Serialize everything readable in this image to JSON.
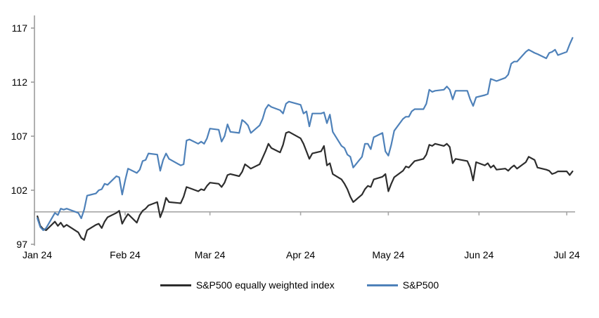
{
  "chart_data": {
    "type": "line",
    "title": "",
    "xlabel": "",
    "ylabel": "",
    "grid": "off",
    "legend_position": "bottom",
    "x_axis": {
      "kind": "date",
      "tick_labels": [
        "Jan 24",
        "Feb 24",
        "Mar 24",
        "Apr 24",
        "May 24",
        "Jun 24",
        "Jul 24"
      ]
    },
    "y_axis": {
      "tick_labels": [
        97,
        102,
        107,
        112,
        117
      ],
      "ylim": [
        96.9,
        118.6
      ]
    },
    "reference_line_value": 100,
    "colors": {
      "sp500": "#4e81b9",
      "sp500_equal_weight": "#2d2d2d",
      "reference_line": "#a6a6a6",
      "axis": "#9c9c9c",
      "text": "#000000",
      "background": "#ffffff"
    },
    "series": [
      {
        "name": "S&P500 equally weighted index",
        "color_key": "sp500_equal_weight",
        "dates": [
          "1-2",
          "1-3",
          "1-4",
          "1-5",
          "1-8",
          "1-9",
          "1-10",
          "1-11",
          "1-12",
          "1-16",
          "1-17",
          "1-18",
          "1-19",
          "1-22",
          "1-23",
          "1-24",
          "1-25",
          "1-26",
          "1-29",
          "1-30",
          "1-31",
          "2-1",
          "2-2",
          "2-5",
          "2-6",
          "2-7",
          "2-8",
          "2-9",
          "2-12",
          "2-13",
          "2-14",
          "2-15",
          "2-16",
          "2-20",
          "2-21",
          "2-22",
          "2-23",
          "2-26",
          "2-27",
          "2-28",
          "2-29",
          "3-1",
          "3-4",
          "3-5",
          "3-6",
          "3-7",
          "3-8",
          "3-11",
          "3-12",
          "3-13",
          "3-14",
          "3-15",
          "3-18",
          "3-19",
          "3-20",
          "3-21",
          "3-22",
          "3-25",
          "3-26",
          "3-27",
          "3-28",
          "4-1",
          "4-2",
          "4-3",
          "4-4",
          "4-5",
          "4-8",
          "4-9",
          "4-10",
          "4-11",
          "4-12",
          "4-15",
          "4-16",
          "4-17",
          "4-18",
          "4-19",
          "4-22",
          "4-23",
          "4-24",
          "4-25",
          "4-26",
          "4-29",
          "4-30",
          "5-1",
          "5-2",
          "5-3",
          "5-6",
          "5-7",
          "5-8",
          "5-9",
          "5-10",
          "5-13",
          "5-14",
          "5-15",
          "5-16",
          "5-17",
          "5-20",
          "5-21",
          "5-22",
          "5-23",
          "5-24",
          "5-28",
          "5-29",
          "5-30",
          "5-31",
          "6-3",
          "6-4",
          "6-5",
          "6-6",
          "6-7",
          "6-10",
          "6-11",
          "6-12",
          "6-13",
          "6-14",
          "6-17",
          "6-18",
          "6-20",
          "6-21",
          "6-24",
          "6-25",
          "6-26",
          "6-27",
          "6-28",
          "7-1",
          "7-2",
          "7-3"
        ],
        "values": [
          99.6,
          98.7,
          98.4,
          98.3,
          99.1,
          98.7,
          99.0,
          98.6,
          98.8,
          98.1,
          97.6,
          97.4,
          98.3,
          98.8,
          98.9,
          98.5,
          99.1,
          99.5,
          99.9,
          100.1,
          98.9,
          99.4,
          99.8,
          99.0,
          99.7,
          100.1,
          100.3,
          100.6,
          100.9,
          99.5,
          100.2,
          101.3,
          100.9,
          100.8,
          101.4,
          102.3,
          102.2,
          101.9,
          102.1,
          102.0,
          102.4,
          102.7,
          102.6,
          102.3,
          102.7,
          103.4,
          103.5,
          103.3,
          103.7,
          104.4,
          104.2,
          104.0,
          104.4,
          105.0,
          105.6,
          106.3,
          105.9,
          105.5,
          106.2,
          107.3,
          107.4,
          106.8,
          106.3,
          105.6,
          104.9,
          105.4,
          105.6,
          106.1,
          104.3,
          104.5,
          103.5,
          103.0,
          102.6,
          102.1,
          101.4,
          100.9,
          101.6,
          102.1,
          102.4,
          102.3,
          103.0,
          103.25,
          103.5,
          101.9,
          102.6,
          103.2,
          103.8,
          104.2,
          104.1,
          104.4,
          104.7,
          104.9,
          105.3,
          106.2,
          106.1,
          106.3,
          106.1,
          106.3,
          106.0,
          104.5,
          104.9,
          104.7,
          104.1,
          102.9,
          104.6,
          104.3,
          104.5,
          104.1,
          104.3,
          103.9,
          104.0,
          103.8,
          104.1,
          104.3,
          104.0,
          104.6,
          105.1,
          104.8,
          104.1,
          103.9,
          103.8,
          103.5,
          103.6,
          103.75,
          103.75,
          103.4,
          103.75
        ]
      },
      {
        "name": "S&P500",
        "color_key": "sp500",
        "dates": [
          "1-2",
          "1-3",
          "1-4",
          "1-5",
          "1-8",
          "1-9",
          "1-10",
          "1-11",
          "1-12",
          "1-16",
          "1-17",
          "1-18",
          "1-19",
          "1-22",
          "1-23",
          "1-24",
          "1-25",
          "1-26",
          "1-29",
          "1-30",
          "1-31",
          "2-1",
          "2-2",
          "2-5",
          "2-6",
          "2-7",
          "2-8",
          "2-9",
          "2-12",
          "2-13",
          "2-14",
          "2-15",
          "2-16",
          "2-20",
          "2-21",
          "2-22",
          "2-23",
          "2-26",
          "2-27",
          "2-28",
          "2-29",
          "3-1",
          "3-4",
          "3-5",
          "3-6",
          "3-7",
          "3-8",
          "3-11",
          "3-12",
          "3-13",
          "3-14",
          "3-15",
          "3-18",
          "3-19",
          "3-20",
          "3-21",
          "3-22",
          "3-25",
          "3-26",
          "3-27",
          "3-28",
          "4-1",
          "4-2",
          "4-3",
          "4-4",
          "4-5",
          "4-8",
          "4-9",
          "4-10",
          "4-11",
          "4-12",
          "4-15",
          "4-16",
          "4-17",
          "4-18",
          "4-19",
          "4-22",
          "4-23",
          "4-24",
          "4-25",
          "4-26",
          "4-29",
          "4-30",
          "5-1",
          "5-2",
          "5-3",
          "5-6",
          "5-7",
          "5-8",
          "5-9",
          "5-10",
          "5-13",
          "5-14",
          "5-15",
          "5-16",
          "5-17",
          "5-20",
          "5-21",
          "5-22",
          "5-23",
          "5-24",
          "5-28",
          "5-29",
          "5-30",
          "5-31",
          "6-3",
          "6-4",
          "6-5",
          "6-6",
          "6-7",
          "6-10",
          "6-11",
          "6-12",
          "6-13",
          "6-14",
          "6-17",
          "6-18",
          "6-20",
          "6-21",
          "6-24",
          "6-25",
          "6-26",
          "6-27",
          "6-28",
          "7-1",
          "7-2",
          "7-3"
        ],
        "values": [
          99.4,
          98.6,
          98.3,
          98.5,
          99.9,
          99.7,
          100.3,
          100.2,
          100.3,
          99.9,
          99.4,
          100.2,
          101.5,
          101.7,
          102.0,
          102.1,
          102.6,
          102.5,
          103.3,
          103.2,
          101.6,
          102.9,
          104.0,
          103.6,
          103.9,
          104.7,
          104.8,
          105.4,
          105.3,
          103.8,
          104.8,
          105.4,
          104.9,
          104.3,
          104.4,
          106.6,
          106.7,
          106.3,
          106.5,
          106.3,
          106.8,
          107.7,
          107.6,
          106.5,
          107.0,
          108.1,
          107.4,
          107.3,
          108.5,
          108.3,
          108.0,
          107.3,
          108.0,
          108.6,
          109.5,
          109.9,
          109.7,
          109.4,
          109.1,
          110.0,
          110.2,
          109.9,
          109.1,
          109.3,
          107.9,
          109.1,
          109.1,
          109.2,
          108.2,
          109.0,
          107.4,
          106.1,
          105.9,
          105.3,
          105.1,
          104.1,
          105.1,
          106.3,
          106.3,
          105.8,
          106.9,
          107.3,
          105.6,
          105.2,
          106.2,
          107.5,
          108.6,
          108.8,
          108.8,
          109.3,
          109.5,
          109.5,
          110.0,
          111.3,
          111.1,
          111.2,
          111.3,
          111.6,
          111.3,
          110.4,
          111.2,
          111.2,
          110.4,
          109.8,
          110.6,
          110.8,
          110.9,
          112.3,
          112.2,
          112.1,
          112.4,
          112.7,
          113.7,
          113.9,
          113.9,
          114.8,
          115.0,
          114.7,
          114.6,
          114.2,
          114.7,
          114.8,
          115.0,
          114.5,
          114.8,
          115.5,
          116.1
        ]
      }
    ]
  },
  "legend": {
    "items": [
      {
        "label": "S&P500 equally weighted index"
      },
      {
        "label": "S&P500"
      }
    ]
  }
}
